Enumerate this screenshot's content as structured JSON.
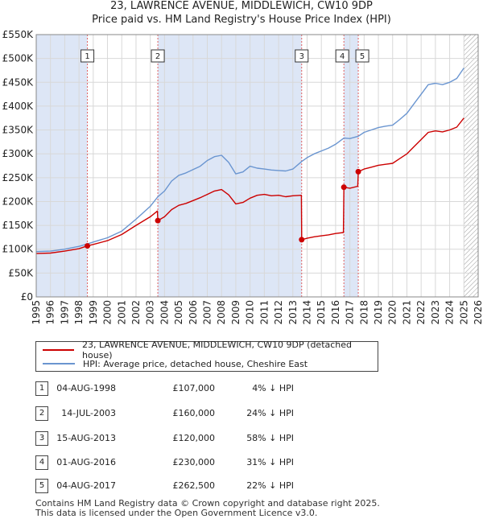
{
  "title_line1": "23, LAWRENCE AVENUE, MIDDLEWICH, CW10 9DP",
  "title_line2": "Price paid vs. HM Land Registry's House Price Index (HPI)",
  "colors": {
    "property": "#cc0000",
    "hpi": "#6a95d0",
    "shade": "#dde6f6",
    "vline": "#e06060",
    "hatch": "#999999"
  },
  "legend": {
    "property_label": "23, LAWRENCE AVENUE, MIDDLEWICH, CW10 9DP (detached house)",
    "hpi_label": "HPI: Average price, detached house, Cheshire East"
  },
  "transactions": [
    {
      "num": "1",
      "date": "04-AUG-1998",
      "price": "£107,000",
      "hpi": "4% ↓ HPI"
    },
    {
      "num": "2",
      "date": "14-JUL-2003",
      "price": "£160,000",
      "hpi": "24% ↓ HPI"
    },
    {
      "num": "3",
      "date": "15-AUG-2013",
      "price": "£120,000",
      "hpi": "58% ↓ HPI"
    },
    {
      "num": "4",
      "date": "01-AUG-2016",
      "price": "£230,000",
      "hpi": "31% ↓ HPI"
    },
    {
      "num": "5",
      "date": "04-AUG-2017",
      "price": "£262,500",
      "hpi": "22% ↓ HPI"
    }
  ],
  "footer_line1": "Contains HM Land Registry data © Crown copyright and database right 2025.",
  "footer_line2": "This data is licensed under the Open Government Licence v3.0.",
  "chart_data": {
    "type": "line",
    "xlim": [
      1995,
      2026
    ],
    "ylim": [
      0,
      550000
    ],
    "x_ticks": [
      1995,
      1996,
      1997,
      1998,
      1999,
      2000,
      2001,
      2002,
      2003,
      2004,
      2005,
      2006,
      2007,
      2008,
      2009,
      2010,
      2011,
      2012,
      2013,
      2014,
      2015,
      2016,
      2017,
      2018,
      2019,
      2020,
      2021,
      2022,
      2023,
      2024,
      2025,
      2026
    ],
    "y_ticks": [
      {
        "value": 0,
        "label": "£0"
      },
      {
        "value": 50000,
        "label": "£50K"
      },
      {
        "value": 100000,
        "label": "£100K"
      },
      {
        "value": 150000,
        "label": "£150K"
      },
      {
        "value": 200000,
        "label": "£200K"
      },
      {
        "value": 250000,
        "label": "£250K"
      },
      {
        "value": 300000,
        "label": "£300K"
      },
      {
        "value": 350000,
        "label": "£350K"
      },
      {
        "value": 400000,
        "label": "£400K"
      },
      {
        "value": 450000,
        "label": "£450K"
      },
      {
        "value": 500000,
        "label": "£500K"
      },
      {
        "value": 550000,
        "label": "£550K"
      }
    ],
    "grid": true,
    "shaded_spans": [
      [
        1995.0,
        1998.59
      ],
      [
        2003.53,
        2013.62
      ],
      [
        2016.58,
        2017.59
      ]
    ],
    "hatch_from": 2025.0,
    "sales": [
      {
        "label": "1",
        "x": 1998.59,
        "y": 107000
      },
      {
        "label": "2",
        "x": 2003.53,
        "y": 160000
      },
      {
        "label": "3",
        "x": 2013.62,
        "y": 120000
      },
      {
        "label": "4",
        "x": 2016.58,
        "y": 230000
      },
      {
        "label": "5",
        "x": 2017.59,
        "y": 262500
      }
    ],
    "series": [
      {
        "name": "HPI: Average price, detached house, Cheshire East",
        "color": "#6a95d0",
        "points": [
          [
            1995.0,
            95000
          ],
          [
            1996.0,
            96000
          ],
          [
            1997.0,
            100000
          ],
          [
            1998.0,
            106000
          ],
          [
            1998.59,
            111000
          ],
          [
            1999.0,
            115000
          ],
          [
            2000.0,
            124000
          ],
          [
            2001.0,
            138000
          ],
          [
            2002.0,
            163000
          ],
          [
            2003.0,
            190000
          ],
          [
            2003.53,
            210000
          ],
          [
            2004.0,
            222000
          ],
          [
            2004.5,
            243000
          ],
          [
            2005.0,
            255000
          ],
          [
            2005.5,
            260000
          ],
          [
            2006.0,
            267000
          ],
          [
            2006.5,
            274000
          ],
          [
            2007.0,
            286000
          ],
          [
            2007.5,
            294000
          ],
          [
            2008.0,
            297000
          ],
          [
            2008.5,
            282000
          ],
          [
            2009.0,
            258000
          ],
          [
            2009.5,
            262000
          ],
          [
            2010.0,
            274000
          ],
          [
            2010.5,
            270000
          ],
          [
            2011.0,
            268000
          ],
          [
            2011.5,
            266000
          ],
          [
            2012.0,
            265000
          ],
          [
            2012.5,
            264000
          ],
          [
            2013.0,
            268000
          ],
          [
            2013.62,
            284000
          ],
          [
            2014.0,
            292000
          ],
          [
            2014.5,
            300000
          ],
          [
            2015.0,
            306000
          ],
          [
            2015.5,
            312000
          ],
          [
            2016.0,
            320000
          ],
          [
            2016.58,
            333000
          ],
          [
            2017.0,
            332000
          ],
          [
            2017.59,
            337000
          ],
          [
            2018.0,
            345000
          ],
          [
            2018.5,
            350000
          ],
          [
            2019.0,
            355000
          ],
          [
            2019.5,
            358000
          ],
          [
            2020.0,
            360000
          ],
          [
            2020.5,
            372000
          ],
          [
            2021.0,
            385000
          ],
          [
            2021.5,
            405000
          ],
          [
            2022.0,
            425000
          ],
          [
            2022.5,
            445000
          ],
          [
            2023.0,
            448000
          ],
          [
            2023.5,
            445000
          ],
          [
            2024.0,
            450000
          ],
          [
            2024.5,
            458000
          ],
          [
            2025.0,
            480000
          ]
        ]
      },
      {
        "name": "23, LAWRENCE AVENUE, MIDDLEWICH, CW10 9DP (detached house)",
        "color": "#cc0000",
        "points": [
          [
            1995.0,
            91000
          ],
          [
            1996.0,
            92000
          ],
          [
            1997.0,
            96000
          ],
          [
            1998.0,
            101000
          ],
          [
            1998.59,
            107000
          ],
          [
            1999.0,
            110000
          ],
          [
            2000.0,
            118000
          ],
          [
            2001.0,
            131000
          ],
          [
            2002.0,
            150000
          ],
          [
            2003.0,
            168000
          ],
          [
            2003.5,
            180000
          ],
          [
            2003.53,
            160000
          ],
          [
            2004.0,
            168000
          ],
          [
            2004.5,
            183000
          ],
          [
            2005.0,
            192000
          ],
          [
            2005.5,
            196000
          ],
          [
            2006.0,
            202000
          ],
          [
            2006.5,
            208000
          ],
          [
            2007.0,
            215000
          ],
          [
            2007.5,
            222000
          ],
          [
            2008.0,
            225000
          ],
          [
            2008.5,
            214000
          ],
          [
            2009.0,
            195000
          ],
          [
            2009.5,
            198000
          ],
          [
            2010.0,
            207000
          ],
          [
            2010.5,
            213000
          ],
          [
            2011.0,
            215000
          ],
          [
            2011.5,
            212000
          ],
          [
            2012.0,
            213000
          ],
          [
            2012.5,
            210000
          ],
          [
            2013.0,
            212000
          ],
          [
            2013.6,
            213000
          ],
          [
            2013.62,
            120000
          ],
          [
            2014.0,
            123000
          ],
          [
            2014.5,
            126000
          ],
          [
            2015.0,
            128000
          ],
          [
            2015.5,
            130000
          ],
          [
            2016.0,
            133000
          ],
          [
            2016.55,
            135000
          ],
          [
            2016.58,
            230000
          ],
          [
            2017.0,
            228000
          ],
          [
            2017.55,
            232000
          ],
          [
            2017.59,
            262500
          ],
          [
            2018.0,
            268000
          ],
          [
            2018.5,
            272000
          ],
          [
            2019.0,
            276000
          ],
          [
            2019.5,
            278000
          ],
          [
            2020.0,
            280000
          ],
          [
            2020.5,
            290000
          ],
          [
            2021.0,
            300000
          ],
          [
            2021.5,
            315000
          ],
          [
            2022.0,
            330000
          ],
          [
            2022.5,
            345000
          ],
          [
            2023.0,
            348000
          ],
          [
            2023.5,
            346000
          ],
          [
            2024.0,
            350000
          ],
          [
            2024.5,
            356000
          ],
          [
            2025.0,
            375000
          ]
        ]
      }
    ]
  }
}
